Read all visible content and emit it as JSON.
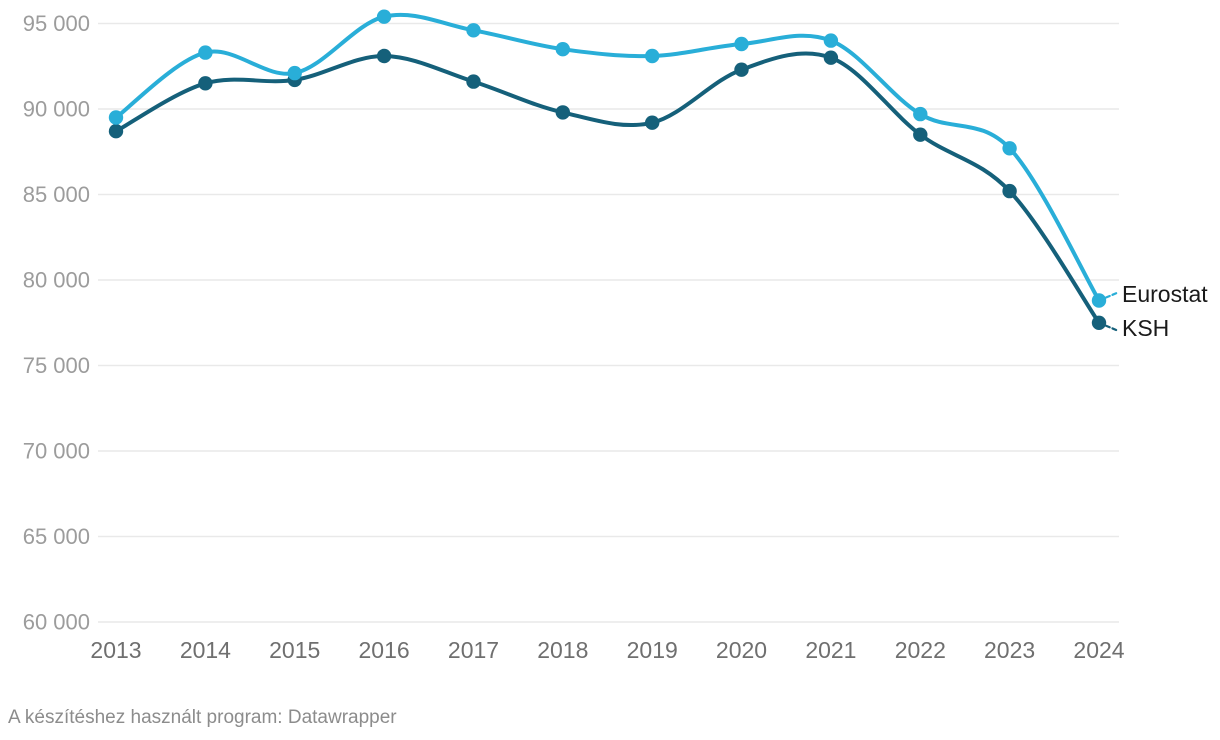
{
  "chart_data": {
    "type": "line",
    "x": [
      2013,
      2014,
      2015,
      2016,
      2017,
      2018,
      2019,
      2020,
      2021,
      2022,
      2023,
      2024
    ],
    "x_labels": [
      "2013",
      "2014",
      "2015",
      "2016",
      "2017",
      "2018",
      "2019",
      "2020",
      "2021",
      "2022",
      "2023",
      "2024"
    ],
    "series": [
      {
        "name": "Eurostat",
        "color": "#29aed8",
        "values": [
          89500,
          93300,
          92100,
          95400,
          94600,
          93500,
          93100,
          93800,
          94000,
          89700,
          87700,
          78800
        ]
      },
      {
        "name": "KSH",
        "color": "#15607a",
        "values": [
          88700,
          91500,
          91700,
          93100,
          91600,
          89800,
          89200,
          92300,
          93000,
          88500,
          85200,
          77500
        ]
      }
    ],
    "yticks": [
      {
        "value": 95000,
        "label": "95 000"
      },
      {
        "value": 90000,
        "label": "90 000"
      },
      {
        "value": 85000,
        "label": "85 000"
      },
      {
        "value": 80000,
        "label": "80 000"
      },
      {
        "value": 75000,
        "label": "75 000"
      },
      {
        "value": 70000,
        "label": "70 000"
      },
      {
        "value": 65000,
        "label": "65 000"
      },
      {
        "value": 60000,
        "label": "60 000"
      }
    ],
    "ylim": [
      60000,
      95500
    ],
    "title": "",
    "xlabel": "",
    "ylabel": "",
    "grid": "horizontal",
    "line_style": "curved",
    "markers": "circle",
    "legend_position": "end-of-line-labels",
    "gridline_color": "#e9e9e9",
    "y_tick_color": "#9c9c9c",
    "x_tick_color": "#6f6f6f",
    "footer": "A készítéshez használt program: Datawrapper"
  }
}
